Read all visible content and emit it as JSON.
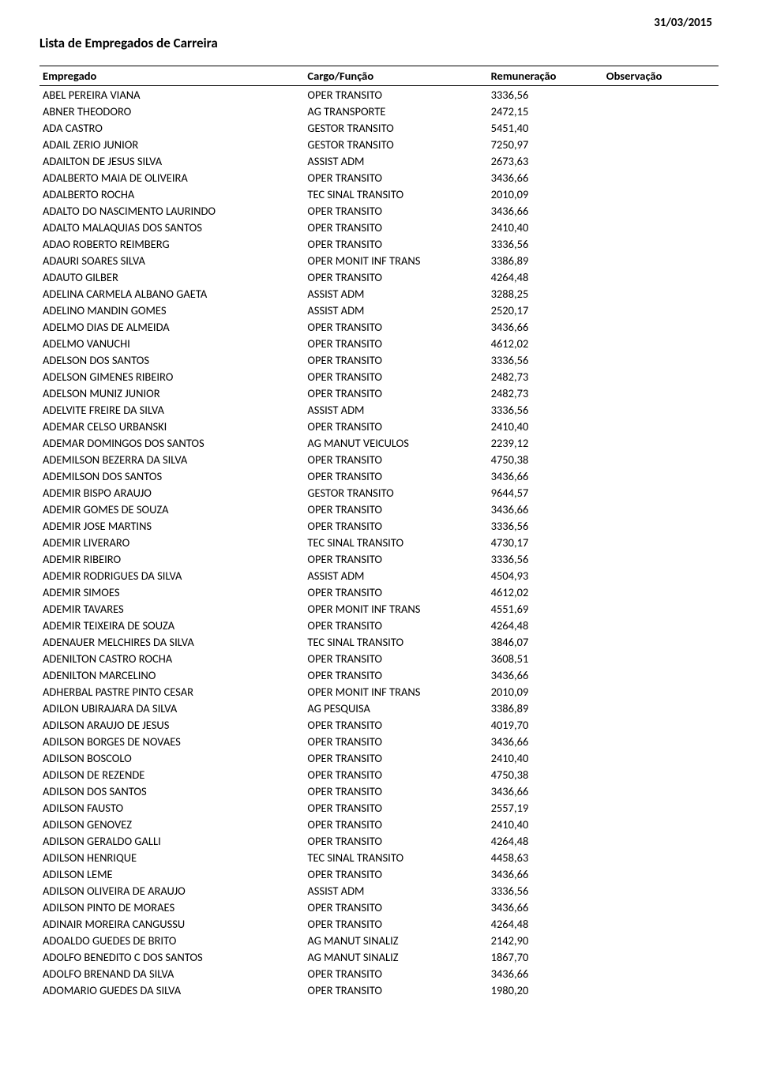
{
  "header_date": "31/03/2015",
  "title": "Lista de Empregados de Carreira",
  "columns": {
    "empregado": "Empregado",
    "cargo": "Cargo/Função",
    "remuneracao": "Remuneração",
    "observacao": "Observação"
  },
  "rows": [
    {
      "emp": "ABEL PEREIRA VIANA",
      "cargo": "OPER TRANSITO",
      "rem": "3336,56",
      "obs": ""
    },
    {
      "emp": "ABNER THEODORO",
      "cargo": "AG TRANSPORTE",
      "rem": "2472,15",
      "obs": ""
    },
    {
      "emp": "ADA CASTRO",
      "cargo": "GESTOR TRANSITO",
      "rem": "5451,40",
      "obs": ""
    },
    {
      "emp": "ADAIL ZERIO JUNIOR",
      "cargo": "GESTOR TRANSITO",
      "rem": "7250,97",
      "obs": ""
    },
    {
      "emp": "ADAILTON DE JESUS SILVA",
      "cargo": "ASSIST ADM",
      "rem": "2673,63",
      "obs": ""
    },
    {
      "emp": "ADALBERTO MAIA DE OLIVEIRA",
      "cargo": "OPER TRANSITO",
      "rem": "3436,66",
      "obs": ""
    },
    {
      "emp": "ADALBERTO ROCHA",
      "cargo": "TEC SINAL TRANSITO",
      "rem": "2010,09",
      "obs": ""
    },
    {
      "emp": "ADALTO DO NASCIMENTO LAURINDO",
      "cargo": "OPER TRANSITO",
      "rem": "3436,66",
      "obs": ""
    },
    {
      "emp": "ADALTO MALAQUIAS DOS SANTOS",
      "cargo": "OPER TRANSITO",
      "rem": "2410,40",
      "obs": ""
    },
    {
      "emp": "ADAO ROBERTO REIMBERG",
      "cargo": "OPER TRANSITO",
      "rem": "3336,56",
      "obs": ""
    },
    {
      "emp": "ADAURI SOARES SILVA",
      "cargo": "OPER MONIT INF TRANS",
      "rem": "3386,89",
      "obs": ""
    },
    {
      "emp": "ADAUTO GILBER",
      "cargo": "OPER TRANSITO",
      "rem": "4264,48",
      "obs": ""
    },
    {
      "emp": "ADELINA CARMELA ALBANO GAETA",
      "cargo": "ASSIST ADM",
      "rem": "3288,25",
      "obs": ""
    },
    {
      "emp": "ADELINO MANDIN GOMES",
      "cargo": "ASSIST ADM",
      "rem": "2520,17",
      "obs": ""
    },
    {
      "emp": "ADELMO DIAS DE ALMEIDA",
      "cargo": "OPER TRANSITO",
      "rem": "3436,66",
      "obs": ""
    },
    {
      "emp": "ADELMO VANUCHI",
      "cargo": "OPER TRANSITO",
      "rem": "4612,02",
      "obs": ""
    },
    {
      "emp": "ADELSON DOS SANTOS",
      "cargo": "OPER TRANSITO",
      "rem": "3336,56",
      "obs": ""
    },
    {
      "emp": "ADELSON GIMENES RIBEIRO",
      "cargo": "OPER TRANSITO",
      "rem": "2482,73",
      "obs": ""
    },
    {
      "emp": "ADELSON MUNIZ JUNIOR",
      "cargo": "OPER TRANSITO",
      "rem": "2482,73",
      "obs": ""
    },
    {
      "emp": "ADELVITE FREIRE DA SILVA",
      "cargo": "ASSIST ADM",
      "rem": "3336,56",
      "obs": ""
    },
    {
      "emp": "ADEMAR CELSO URBANSKI",
      "cargo": "OPER TRANSITO",
      "rem": "2410,40",
      "obs": ""
    },
    {
      "emp": "ADEMAR DOMINGOS DOS SANTOS",
      "cargo": "AG MANUT VEICULOS",
      "rem": "2239,12",
      "obs": ""
    },
    {
      "emp": "ADEMILSON BEZERRA DA SILVA",
      "cargo": "OPER TRANSITO",
      "rem": "4750,38",
      "obs": ""
    },
    {
      "emp": "ADEMILSON DOS SANTOS",
      "cargo": "OPER TRANSITO",
      "rem": "3436,66",
      "obs": ""
    },
    {
      "emp": "ADEMIR BISPO ARAUJO",
      "cargo": "GESTOR TRANSITO",
      "rem": "9644,57",
      "obs": ""
    },
    {
      "emp": "ADEMIR GOMES DE SOUZA",
      "cargo": "OPER TRANSITO",
      "rem": "3436,66",
      "obs": ""
    },
    {
      "emp": "ADEMIR JOSE MARTINS",
      "cargo": "OPER TRANSITO",
      "rem": "3336,56",
      "obs": ""
    },
    {
      "emp": "ADEMIR LIVERARO",
      "cargo": "TEC SINAL TRANSITO",
      "rem": "4730,17",
      "obs": ""
    },
    {
      "emp": "ADEMIR RIBEIRO",
      "cargo": "OPER TRANSITO",
      "rem": "3336,56",
      "obs": ""
    },
    {
      "emp": "ADEMIR RODRIGUES DA SILVA",
      "cargo": "ASSIST ADM",
      "rem": "4504,93",
      "obs": ""
    },
    {
      "emp": "ADEMIR SIMOES",
      "cargo": "OPER TRANSITO",
      "rem": "4612,02",
      "obs": ""
    },
    {
      "emp": "ADEMIR TAVARES",
      "cargo": "OPER MONIT INF TRANS",
      "rem": "4551,69",
      "obs": ""
    },
    {
      "emp": "ADEMIR TEIXEIRA DE SOUZA",
      "cargo": "OPER TRANSITO",
      "rem": "4264,48",
      "obs": ""
    },
    {
      "emp": "ADENAUER MELCHIRES DA SILVA",
      "cargo": "TEC SINAL TRANSITO",
      "rem": "3846,07",
      "obs": ""
    },
    {
      "emp": "ADENILTON CASTRO ROCHA",
      "cargo": "OPER TRANSITO",
      "rem": "3608,51",
      "obs": ""
    },
    {
      "emp": "ADENILTON MARCELINO",
      "cargo": "OPER TRANSITO",
      "rem": "3436,66",
      "obs": ""
    },
    {
      "emp": "ADHERBAL PASTRE PINTO CESAR",
      "cargo": "OPER MONIT INF TRANS",
      "rem": "2010,09",
      "obs": ""
    },
    {
      "emp": "ADILON UBIRAJARA DA SILVA",
      "cargo": "AG PESQUISA",
      "rem": "3386,89",
      "obs": ""
    },
    {
      "emp": "ADILSON ARAUJO DE JESUS",
      "cargo": "OPER TRANSITO",
      "rem": "4019,70",
      "obs": ""
    },
    {
      "emp": "ADILSON BORGES DE NOVAES",
      "cargo": "OPER TRANSITO",
      "rem": "3436,66",
      "obs": ""
    },
    {
      "emp": "ADILSON BOSCOLO",
      "cargo": "OPER TRANSITO",
      "rem": "2410,40",
      "obs": ""
    },
    {
      "emp": "ADILSON DE REZENDE",
      "cargo": "OPER TRANSITO",
      "rem": "4750,38",
      "obs": ""
    },
    {
      "emp": "ADILSON DOS SANTOS",
      "cargo": "OPER TRANSITO",
      "rem": "3436,66",
      "obs": ""
    },
    {
      "emp": "ADILSON FAUSTO",
      "cargo": "OPER TRANSITO",
      "rem": "2557,19",
      "obs": ""
    },
    {
      "emp": "ADILSON GENOVEZ",
      "cargo": "OPER TRANSITO",
      "rem": "2410,40",
      "obs": ""
    },
    {
      "emp": "ADILSON GERALDO GALLI",
      "cargo": "OPER TRANSITO",
      "rem": "4264,48",
      "obs": ""
    },
    {
      "emp": "ADILSON HENRIQUE",
      "cargo": "TEC SINAL TRANSITO",
      "rem": "4458,63",
      "obs": ""
    },
    {
      "emp": "ADILSON LEME",
      "cargo": "OPER TRANSITO",
      "rem": "3436,66",
      "obs": ""
    },
    {
      "emp": "ADILSON OLIVEIRA DE ARAUJO",
      "cargo": "ASSIST ADM",
      "rem": "3336,56",
      "obs": ""
    },
    {
      "emp": "ADILSON PINTO DE MORAES",
      "cargo": "OPER TRANSITO",
      "rem": "3436,66",
      "obs": ""
    },
    {
      "emp": "ADINAIR MOREIRA CANGUSSU",
      "cargo": "OPER TRANSITO",
      "rem": "4264,48",
      "obs": ""
    },
    {
      "emp": "ADOALDO GUEDES DE BRITO",
      "cargo": "AG MANUT SINALIZ",
      "rem": "2142,90",
      "obs": ""
    },
    {
      "emp": "ADOLFO BENEDITO C DOS SANTOS",
      "cargo": "AG MANUT SINALIZ",
      "rem": "1867,70",
      "obs": ""
    },
    {
      "emp": "ADOLFO BRENAND DA SILVA",
      "cargo": "OPER TRANSITO",
      "rem": "3436,66",
      "obs": ""
    },
    {
      "emp": "ADOMARIO GUEDES DA SILVA",
      "cargo": "OPER TRANSITO",
      "rem": "1980,20",
      "obs": ""
    }
  ]
}
